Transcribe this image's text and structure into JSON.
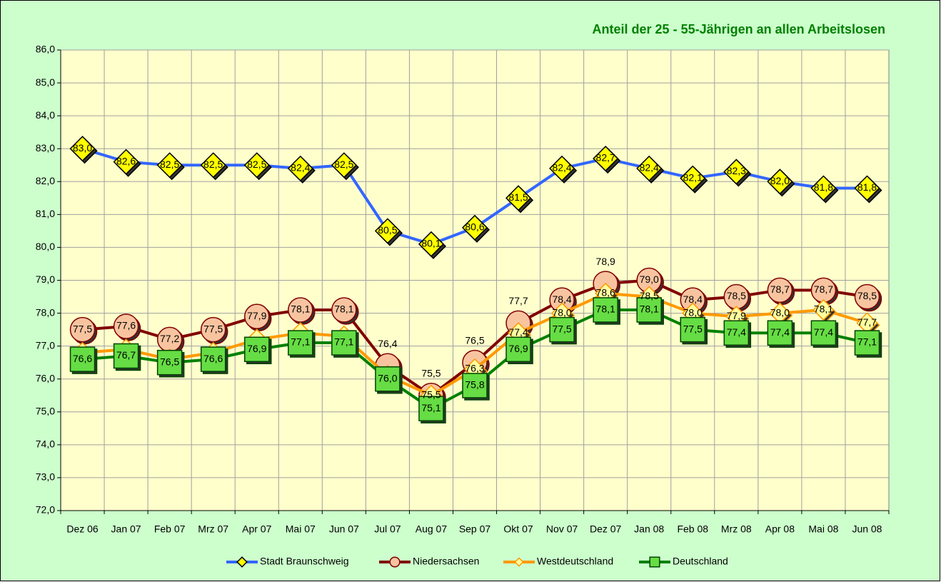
{
  "chart_data": {
    "type": "line",
    "title": "Anteil der 25 - 55-Jährigen an allen Arbeitslosen",
    "categories": [
      "Dez 06",
      "Jan 07",
      "Feb 07",
      "Mrz 07",
      "Apr 07",
      "Mai 07",
      "Jun 07",
      "Jul 07",
      "Aug 07",
      "Sep 07",
      "Okt 07",
      "Nov 07",
      "Dez 07",
      "Jan 08",
      "Feb 08",
      "Mrz 08",
      "Apr 08",
      "Mai 08",
      "Jun 08"
    ],
    "series": [
      {
        "name": "Stadt Braunschweig",
        "color": "#3366ff",
        "marker": "diamond",
        "values": [
          83.0,
          82.6,
          82.5,
          82.5,
          82.5,
          82.4,
          82.5,
          80.5,
          80.1,
          80.6,
          81.5,
          82.4,
          82.7,
          82.4,
          82.1,
          82.3,
          82.0,
          81.8,
          81.8
        ],
        "value_labels": [
          "83,0",
          "82,6",
          "82,5",
          "82,5",
          "82,5",
          "82,4",
          "82,5",
          "80,5",
          "80,1",
          "80,6",
          "81,5",
          "82,4",
          "82,7",
          "82,4",
          "82,1",
          "82,3",
          "82,0",
          "81,8",
          "81,8"
        ]
      },
      {
        "name": "Niedersachsen",
        "color": "#800000",
        "marker": "circle",
        "values": [
          77.5,
          77.6,
          77.2,
          77.5,
          77.9,
          78.1,
          78.1,
          76.4,
          75.5,
          76.5,
          77.7,
          78.4,
          78.9,
          79.0,
          78.4,
          78.5,
          78.7,
          78.7,
          78.5
        ],
        "value_labels": [
          "77,5",
          "77,6",
          "77,2",
          "77,5",
          "77,9",
          "78,1",
          "78,1",
          "76,4",
          "75,5",
          "76,5",
          "77,7",
          "78,4",
          "78,9",
          "79,0",
          "78,4",
          "78,5",
          "78,7",
          "78,7",
          "78,5"
        ]
      },
      {
        "name": "Westdeutschland",
        "color": "#ff9900",
        "marker": "small-diamond",
        "values": [
          76.8,
          76.9,
          76.6,
          76.8,
          77.2,
          77.4,
          77.3,
          76.1,
          75.5,
          76.3,
          77.4,
          78.0,
          78.6,
          78.5,
          78.0,
          77.9,
          78.0,
          78.1,
          77.7
        ],
        "value_labels": [
          null,
          null,
          null,
          null,
          null,
          null,
          null,
          null,
          "75,5",
          "76,3",
          "77,4",
          "78,0",
          "78,6",
          "78,5",
          "78,0",
          "77,9",
          "78,0",
          "78,1",
          "77,7"
        ]
      },
      {
        "name": "Deutschland",
        "color": "#008000",
        "marker": "square",
        "values": [
          76.6,
          76.7,
          76.5,
          76.6,
          76.9,
          77.1,
          77.1,
          76.0,
          75.1,
          75.8,
          76.9,
          77.5,
          78.1,
          78.1,
          77.5,
          77.4,
          77.4,
          77.4,
          77.1
        ],
        "value_labels": [
          "76,6",
          "76,7",
          "76,5",
          "76,6",
          "76,9",
          "77,1",
          "77,1",
          "76,0",
          "75,1",
          "75,8",
          "76,9",
          "77,5",
          "78,1",
          "78,1",
          "77,5",
          "77,4",
          "77,4",
          "77,4",
          "77,1"
        ]
      }
    ],
    "ylim": [
      72,
      86
    ],
    "yticks": [
      {
        "value": 72,
        "label": "72,0"
      },
      {
        "value": 73,
        "label": "73,0"
      },
      {
        "value": 74,
        "label": "74,0"
      },
      {
        "value": 75,
        "label": "75,0"
      },
      {
        "value": 76,
        "label": "76,0"
      },
      {
        "value": 77,
        "label": "77,0"
      },
      {
        "value": 78,
        "label": "78,0"
      },
      {
        "value": 79,
        "label": "79,0"
      },
      {
        "value": 80,
        "label": "80,0"
      },
      {
        "value": 81,
        "label": "81,0"
      },
      {
        "value": 82,
        "label": "82,0"
      },
      {
        "value": 83,
        "label": "83,0"
      },
      {
        "value": 84,
        "label": "84,0"
      },
      {
        "value": 85,
        "label": "85,0"
      },
      {
        "value": 86,
        "label": "86,0"
      }
    ],
    "grid": true,
    "legend": "bottom"
  }
}
